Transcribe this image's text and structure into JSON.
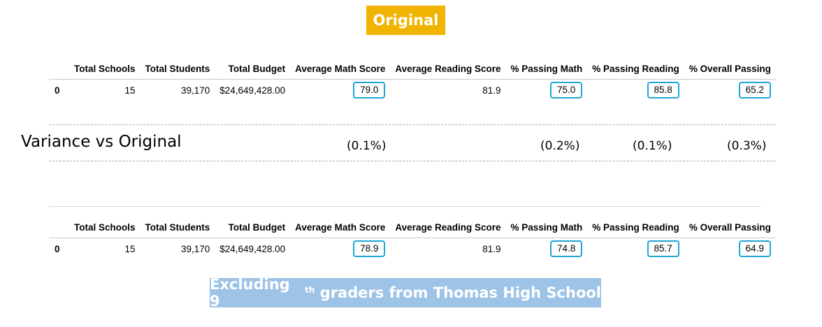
{
  "banners": {
    "original": "Original",
    "excluding_prefix": "Excluding 9",
    "excluding_sup": "th",
    "excluding_suffix": " graders from Thomas High School"
  },
  "columns": [
    "Total Schools",
    "Total Students",
    "Total Budget",
    "Average Math Score",
    "Average Reading Score",
    "% Passing Math",
    "% Passing Reading",
    "% Overall Passing"
  ],
  "original": {
    "index": "0",
    "total_schools": "15",
    "total_students": "39,170",
    "total_budget": "$24,649,428.00",
    "avg_math": "79.0",
    "avg_reading": "81.9",
    "pct_math": "75.0",
    "pct_reading": "85.8",
    "pct_overall": "65.2"
  },
  "variance": {
    "label": "Variance vs Original",
    "avg_math": "(0.1%)",
    "pct_math": "(0.2%)",
    "pct_reading": "(0.1%)",
    "pct_overall": "(0.3%)"
  },
  "excluding": {
    "index": "0",
    "total_schools": "15",
    "total_students": "39,170",
    "total_budget": "$24,649,428.00",
    "avg_math": "78.9",
    "avg_reading": "81.9",
    "pct_math": "74.8",
    "pct_reading": "85.7",
    "pct_overall": "64.9"
  },
  "colors": {
    "original_banner": "#f0b400",
    "excluding_banner": "#9dc3e6",
    "highlight_box": "#1fa5d8"
  }
}
